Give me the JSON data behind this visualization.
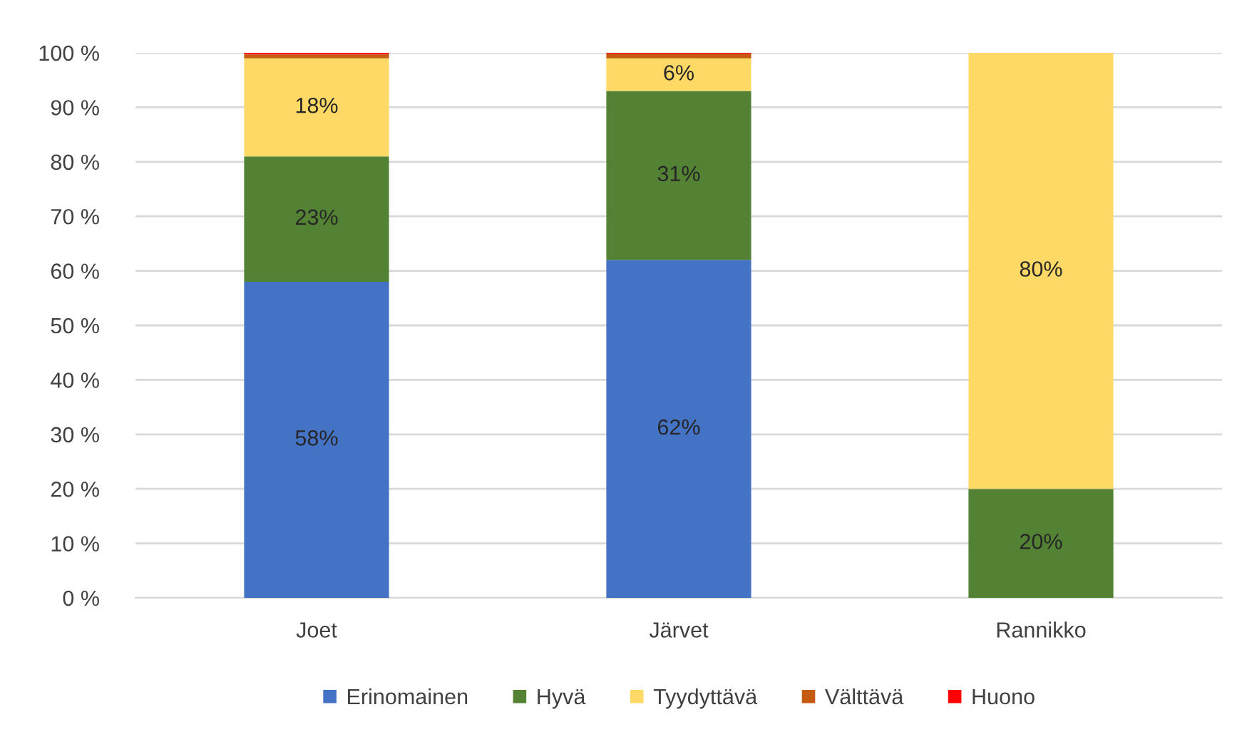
{
  "chart_data": {
    "type": "bar",
    "stacked": true,
    "categories": [
      "Joet",
      "Järvet",
      "Rannikko"
    ],
    "series": [
      {
        "name": "Erinomainen",
        "color": "#4472c4",
        "values": [
          58,
          62,
          0
        ],
        "value_labels": [
          "58%",
          "62%",
          null
        ]
      },
      {
        "name": "Hyvä",
        "color": "#548235",
        "values": [
          23,
          31,
          20
        ],
        "value_labels": [
          "23%",
          "31%",
          "20%"
        ]
      },
      {
        "name": "Tyydyttävä",
        "color": "#ffd966",
        "values": [
          18,
          6,
          80
        ],
        "value_labels": [
          "18%",
          "6%",
          "80%"
        ]
      },
      {
        "name": "Välttävä",
        "color": "#c55a11",
        "values": [
          0.7,
          0.8,
          0
        ],
        "value_labels": [
          null,
          null,
          null
        ]
      },
      {
        "name": "Huono",
        "color": "#ff0000",
        "values": [
          0.3,
          0.2,
          0
        ],
        "value_labels": [
          null,
          null,
          null
        ]
      }
    ],
    "ylim": [
      0,
      100
    ],
    "yticks": [
      {
        "value": 0,
        "label": "0 %"
      },
      {
        "value": 10,
        "label": "10 %"
      },
      {
        "value": 20,
        "label": "20 %"
      },
      {
        "value": 30,
        "label": "30 %"
      },
      {
        "value": 40,
        "label": "40 %"
      },
      {
        "value": 50,
        "label": "50 %"
      },
      {
        "value": 60,
        "label": "60 %"
      },
      {
        "value": 70,
        "label": "70 %"
      },
      {
        "value": 80,
        "label": "80 %"
      },
      {
        "value": 90,
        "label": "90 %"
      },
      {
        "value": 100,
        "label": "100 %"
      }
    ],
    "grid": "y",
    "legend": "bottom"
  }
}
